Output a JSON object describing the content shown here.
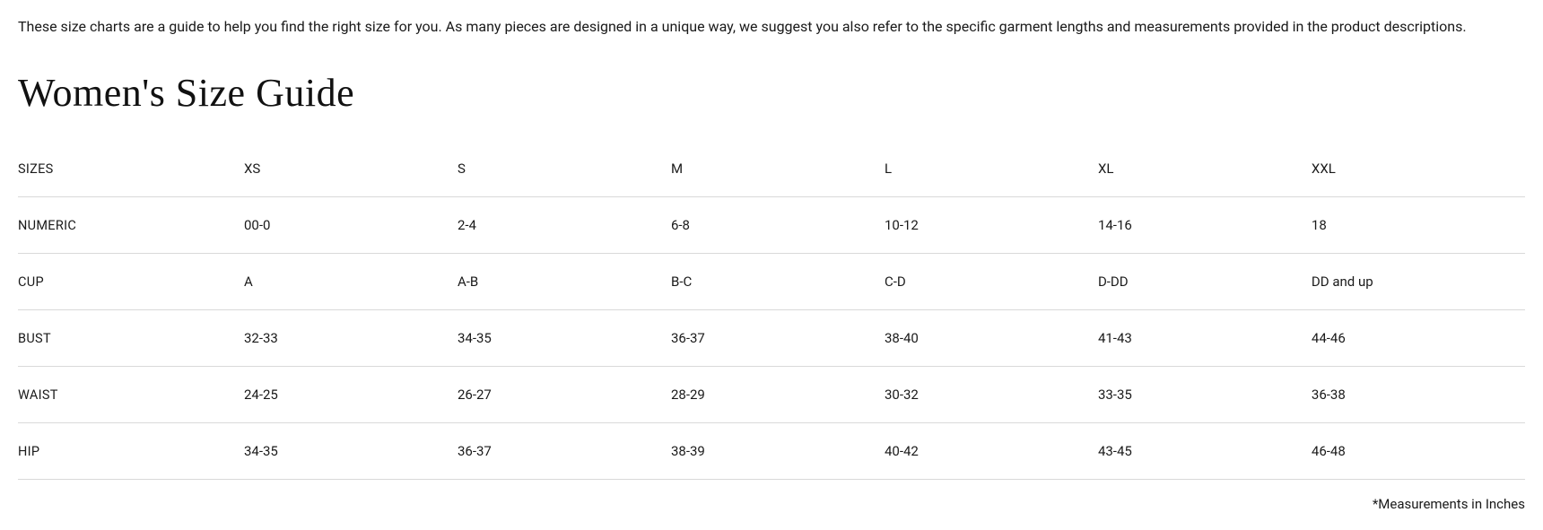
{
  "intro_text": "These size charts are a guide to help you find the right size for you. As many pieces are designed in a unique way, we suggest you also refer to the specific garment lengths and measurements provided in the product descriptions.",
  "heading": "Women's Size Guide",
  "footnote": "*Measurements in Inches",
  "table": {
    "type": "table",
    "border_color": "#d9d9d9",
    "background_color": "#ffffff",
    "text_color": "#1a1a1a",
    "label_fontsize": 14.5,
    "cell_fontsize": 15,
    "columns": [
      "SIZES",
      "XS",
      "S",
      "M",
      "L",
      "XL",
      "XXL"
    ],
    "rows": [
      {
        "label": "SIZES",
        "cells": [
          "XS",
          "S",
          "M",
          "L",
          "XL",
          "XXL"
        ]
      },
      {
        "label": "NUMERIC",
        "cells": [
          "00-0",
          "2-4",
          "6-8",
          "10-12",
          "14-16",
          "18"
        ]
      },
      {
        "label": "CUP",
        "cells": [
          "A",
          "A-B",
          "B-C",
          "C-D",
          "D-DD",
          "DD and up"
        ]
      },
      {
        "label": "BUST",
        "cells": [
          "32-33",
          "34-35",
          "36-37",
          "38-40",
          "41-43",
          "44-46"
        ]
      },
      {
        "label": "WAIST",
        "cells": [
          "24-25",
          "26-27",
          "28-29",
          "30-32",
          "33-35",
          "36-38"
        ]
      },
      {
        "label": "HIP",
        "cells": [
          "34-35",
          "36-37",
          "38-39",
          "40-42",
          "43-45",
          "46-48"
        ]
      }
    ]
  }
}
